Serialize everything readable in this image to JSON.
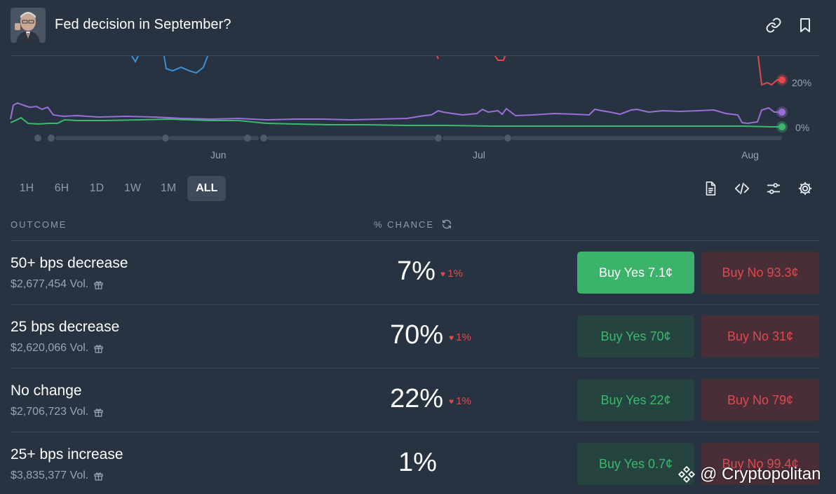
{
  "header": {
    "title": "Fed decision in September?",
    "icons": [
      "link-icon",
      "bookmark-icon"
    ]
  },
  "chart": {
    "x_ticks": [
      "Jun",
      "Jul",
      "Aug"
    ],
    "y_ticks": [
      "20%",
      "0%"
    ],
    "series_colors": {
      "blue": "#3b8fd6",
      "red": "#e0484e",
      "purple": "#9b6ed8",
      "green": "#3cb86e"
    }
  },
  "chart_data": {
    "type": "line",
    "x": [
      "Jun",
      "Jul",
      "Aug"
    ],
    "y_ticks": [
      "20%",
      "0%"
    ],
    "series": [
      {
        "color": "#e0484e",
        "last_value": 22
      },
      {
        "color": "#9b6ed8",
        "last_value": 7
      },
      {
        "color": "#3cb86e",
        "last_value": 1
      }
    ]
  },
  "time_ranges": [
    {
      "label": "1H",
      "active": false
    },
    {
      "label": "6H",
      "active": false
    },
    {
      "label": "1D",
      "active": false
    },
    {
      "label": "1W",
      "active": false
    },
    {
      "label": "1M",
      "active": false
    },
    {
      "label": "ALL",
      "active": true
    }
  ],
  "tools": [
    "document-icon",
    "code-icon",
    "sliders-icon",
    "gear-icon"
  ],
  "table": {
    "outcome_header": "OUTCOME",
    "chance_header": "% CHANCE"
  },
  "outcomes": [
    {
      "name": "50+ bps decrease",
      "volume": "$2,677,454 Vol.",
      "chance": "7%",
      "delta": "1%",
      "buy_yes": "Buy Yes 7.1¢",
      "buy_no": "Buy No 93.3¢",
      "yes_primary": true
    },
    {
      "name": "25 bps decrease",
      "volume": "$2,620,066 Vol.",
      "chance": "70%",
      "delta": "1%",
      "buy_yes": "Buy Yes 70¢",
      "buy_no": "Buy No 31¢",
      "yes_primary": false
    },
    {
      "name": "No change",
      "volume": "$2,706,723 Vol.",
      "chance": "22%",
      "delta": "1%",
      "buy_yes": "Buy Yes 22¢",
      "buy_no": "Buy No 79¢",
      "yes_primary": false
    },
    {
      "name": "25+ bps increase",
      "volume": "$3,835,377 Vol.",
      "chance": "1%",
      "delta": "",
      "buy_yes": "Buy Yes 0.7¢",
      "buy_no": "Buy No 99.4¢",
      "yes_primary": false
    }
  ],
  "watermark": "@ Cryptopolitan"
}
